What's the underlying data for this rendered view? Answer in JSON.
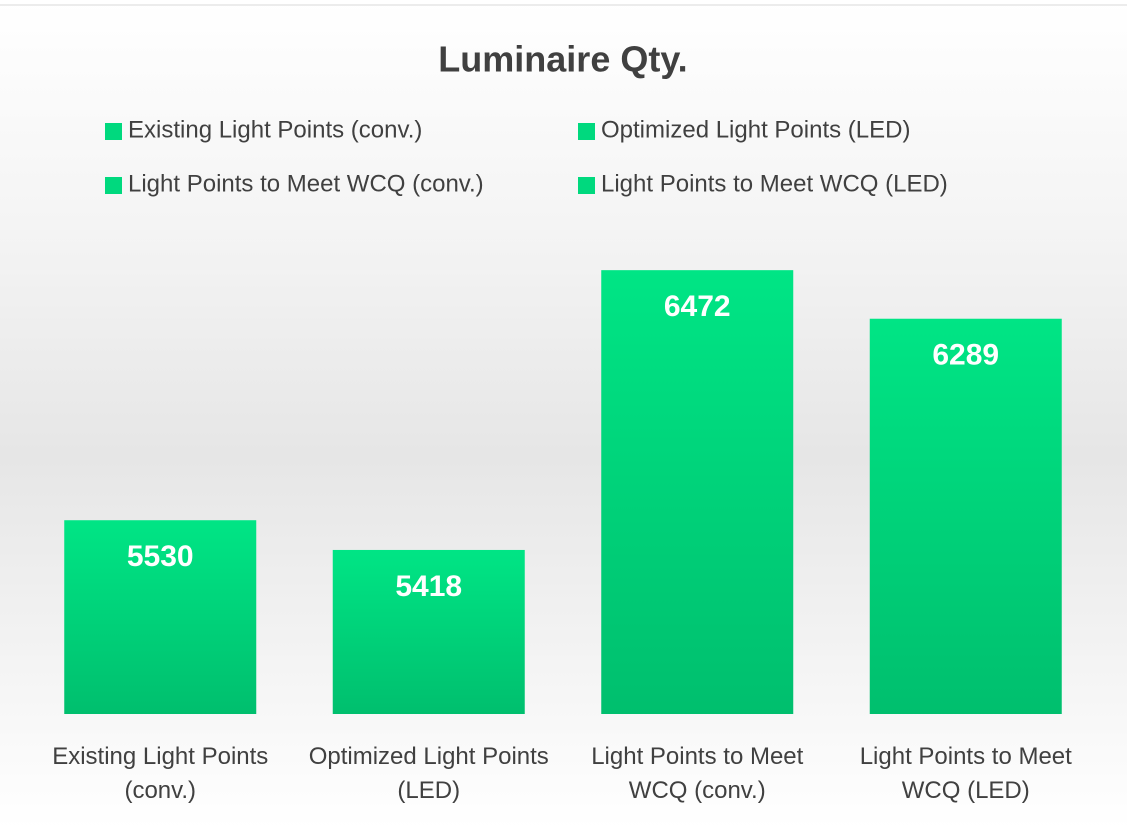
{
  "chart_data": {
    "type": "bar",
    "title": "Luminaire Qty.",
    "categories": [
      "Existing Light Points (conv.)",
      "Optimized Light Points (LED)",
      "Light Points to Meet WCQ (conv.)",
      "Light Points to Meet WCQ (LED)"
    ],
    "values": [
      5530,
      5418,
      6472,
      6289
    ],
    "color": "#00d97e",
    "ylim": [
      4800,
      7000
    ],
    "legend": "top",
    "data_labels": true
  }
}
